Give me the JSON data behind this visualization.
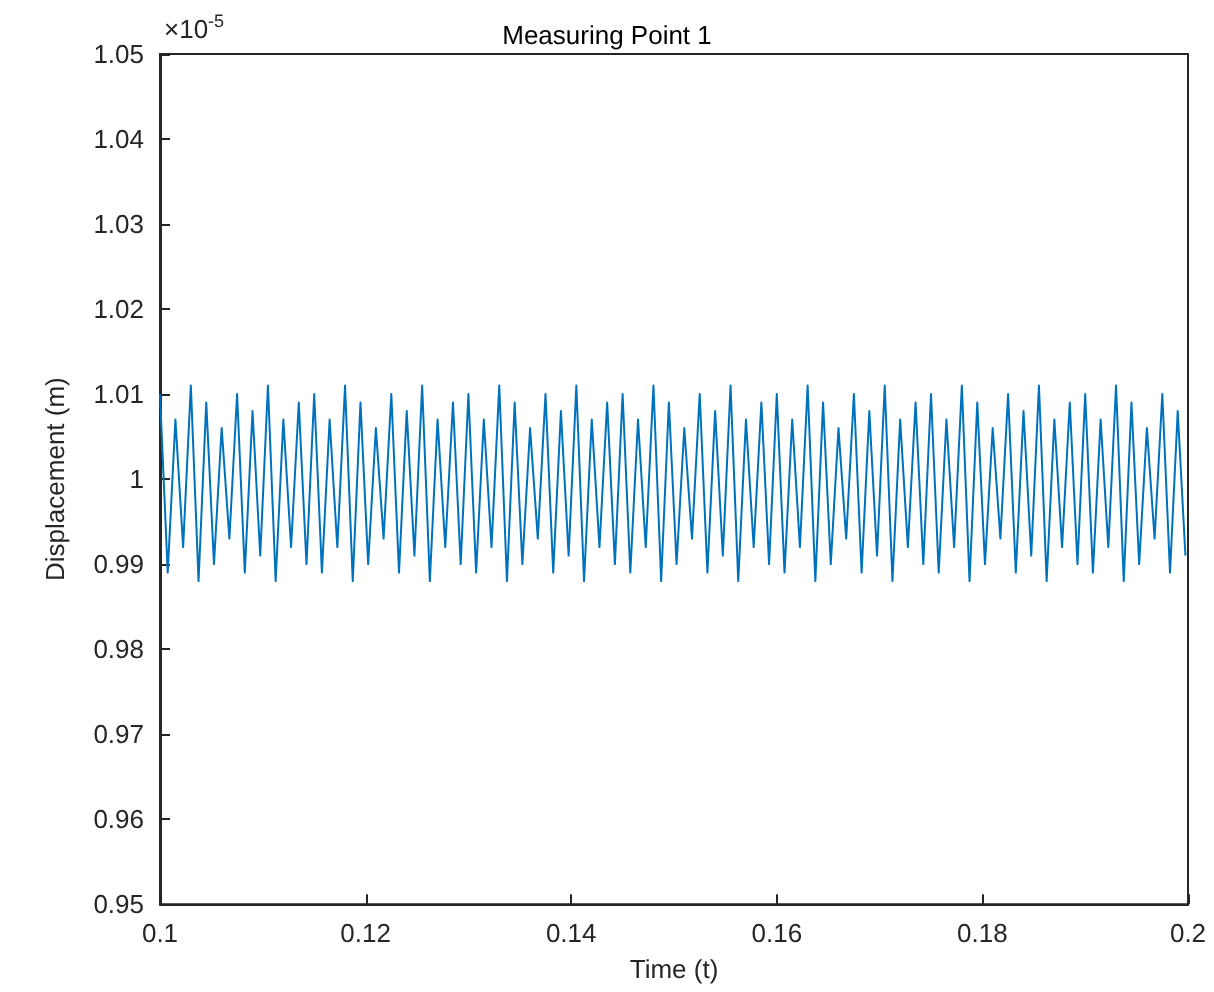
{
  "chart_data": {
    "type": "line",
    "title": "Measuring Point 1",
    "xlabel": "Time (t)",
    "ylabel": "Displacement (m)",
    "annotations": [
      "×10$^{-5}$"
    ],
    "xlim": [
      0.1,
      0.2
    ],
    "xticks": [
      0.1,
      0.12,
      0.14,
      0.16,
      0.18,
      0.2
    ],
    "ylim": [
      0.95,
      1.05
    ],
    "yticks": [
      0.95,
      0.96,
      0.97,
      0.98,
      0.99,
      1,
      1.01,
      1.02,
      1.03,
      1.04,
      1.05
    ],
    "grid": false,
    "marker": "none",
    "line_style": "solid",
    "series": [
      {
        "color": "#0072bd",
        "x": [
          0.1,
          0.10075,
          0.1015,
          0.10225,
          0.103,
          0.10375,
          0.1045,
          0.10525,
          0.106,
          0.10675,
          0.1075,
          0.10825,
          0.109,
          0.10975,
          0.1105,
          0.11125,
          0.112,
          0.11275,
          0.1135,
          0.11425,
          0.115,
          0.11575,
          0.1165,
          0.11725,
          0.118,
          0.11875,
          0.1195,
          0.12025,
          0.121,
          0.12175,
          0.1225,
          0.12325,
          0.124,
          0.12475,
          0.1255,
          0.12625,
          0.127,
          0.12775,
          0.1285,
          0.12925,
          0.13,
          0.13075,
          0.1315,
          0.13225,
          0.133,
          0.13375,
          0.1345,
          0.13525,
          0.136,
          0.13675,
          0.1375,
          0.13825,
          0.139,
          0.13975,
          0.1405,
          0.14125,
          0.142,
          0.14275,
          0.1435,
          0.14425,
          0.145,
          0.14575,
          0.1465,
          0.14725,
          0.148,
          0.14875,
          0.1495,
          0.15025,
          0.151,
          0.15175,
          0.1525,
          0.15325,
          0.154,
          0.15475,
          0.1555,
          0.15625,
          0.157,
          0.15775,
          0.1585,
          0.15925,
          0.16,
          0.16075,
          0.1615,
          0.16225,
          0.163,
          0.16375,
          0.1645,
          0.16525,
          0.166,
          0.16675,
          0.1675,
          0.16825,
          0.169,
          0.16975,
          0.1705,
          0.17125,
          0.172,
          0.17275,
          0.1735,
          0.17425,
          0.175,
          0.17575,
          0.1765,
          0.17725,
          0.178,
          0.17875,
          0.1795,
          0.18025,
          0.181,
          0.18175,
          0.1825,
          0.18325,
          0.184,
          0.18475,
          0.1855,
          0.18625,
          0.187,
          0.18775,
          0.1885,
          0.18925,
          0.19,
          0.19075,
          0.1915,
          0.19225,
          0.193,
          0.19375,
          0.1945,
          0.19525,
          0.196,
          0.19675,
          0.1975,
          0.19825,
          0.199,
          0.19975
        ],
        "values": [
          1.01,
          0.989,
          1.007,
          0.992,
          1.011,
          0.988,
          1.009,
          0.99,
          1.006,
          0.993,
          1.01,
          0.989,
          1.008,
          0.991,
          1.011,
          0.988,
          1.007,
          0.992,
          1.009,
          0.99,
          1.01,
          0.989,
          1.007,
          0.992,
          1.011,
          0.988,
          1.009,
          0.99,
          1.006,
          0.993,
          1.01,
          0.989,
          1.008,
          0.991,
          1.011,
          0.988,
          1.007,
          0.992,
          1.009,
          0.99,
          1.01,
          0.989,
          1.007,
          0.992,
          1.011,
          0.988,
          1.009,
          0.99,
          1.006,
          0.993,
          1.01,
          0.989,
          1.008,
          0.991,
          1.011,
          0.988,
          1.007,
          0.992,
          1.009,
          0.99,
          1.01,
          0.989,
          1.007,
          0.992,
          1.011,
          0.988,
          1.009,
          0.99,
          1.006,
          0.993,
          1.01,
          0.989,
          1.008,
          0.991,
          1.011,
          0.988,
          1.007,
          0.992,
          1.009,
          0.99,
          1.01,
          0.989,
          1.007,
          0.992,
          1.011,
          0.988,
          1.009,
          0.99,
          1.006,
          0.993,
          1.01,
          0.989,
          1.008,
          0.991,
          1.011,
          0.988,
          1.007,
          0.992,
          1.009,
          0.99,
          1.01,
          0.989,
          1.007,
          0.992,
          1.011,
          0.988,
          1.009,
          0.99,
          1.006,
          0.993,
          1.01,
          0.989,
          1.008,
          0.991,
          1.011,
          0.988,
          1.007,
          0.992,
          1.009,
          0.99,
          1.01,
          0.989,
          1.007,
          0.992,
          1.011,
          0.988,
          1.009,
          0.99,
          1.006,
          0.993,
          1.01,
          0.989,
          1.008,
          0.991
        ]
      }
    ]
  }
}
